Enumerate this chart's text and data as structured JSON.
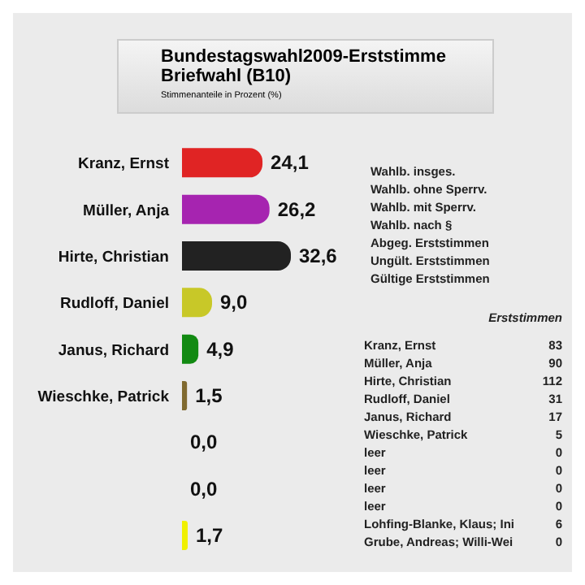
{
  "chart_data": {
    "type": "bar",
    "orientation": "horizontal",
    "title": "Bundestagswahl2009-Erststimme Briefwahl (B10)",
    "subtitle": "Stimmenanteile in Prozent (%)",
    "categories": [
      "Kranz, Ernst",
      "Müller, Anja",
      "Hirte, Christian",
      "Rudloff, Daniel",
      "Janus, Richard",
      "Wieschke, Patrick",
      null,
      null,
      null
    ],
    "values": [
      24.1,
      26.2,
      32.6,
      9.0,
      4.9,
      1.5,
      0.0,
      0.0,
      1.7
    ],
    "value_labels": [
      "24,1",
      "26,2",
      "32,6",
      "9,0",
      "4,9",
      "1,5",
      "0,0",
      "0,0",
      "1,7"
    ],
    "colors": [
      "#e02424",
      "#a624b0",
      "#222222",
      "#c8c828",
      "#128a12",
      "#806a30",
      "#7a3a3a",
      "#c84a64",
      "#f0f000"
    ],
    "tick_labels": "y",
    "annotations": [
      "Wahlb. insges.",
      "Wahlb. ohne Sperrv.",
      "Wahlb. mit Sperrv.",
      "Wahlb. nach §",
      "Abgeg. Erststimmen",
      "Ungült. Erststimmen",
      "Gültige Erststimmen",
      "Erststimmen",
      "Kranz, Ernst",
      "Müller, Anja",
      "Hirte, Christian",
      "Rudloff, Daniel",
      "Janus, Richard",
      "Wieschke, Patrick",
      "leer",
      "leer",
      "leer",
      "leer",
      "Lohfing-Blanke, Klaus; Ini",
      "Grube, Andreas; Willi-Wei",
      "83",
      "90",
      "112",
      "31",
      "17",
      "5",
      "0",
      "0",
      "0",
      "0",
      "6",
      "0"
    ]
  }
}
